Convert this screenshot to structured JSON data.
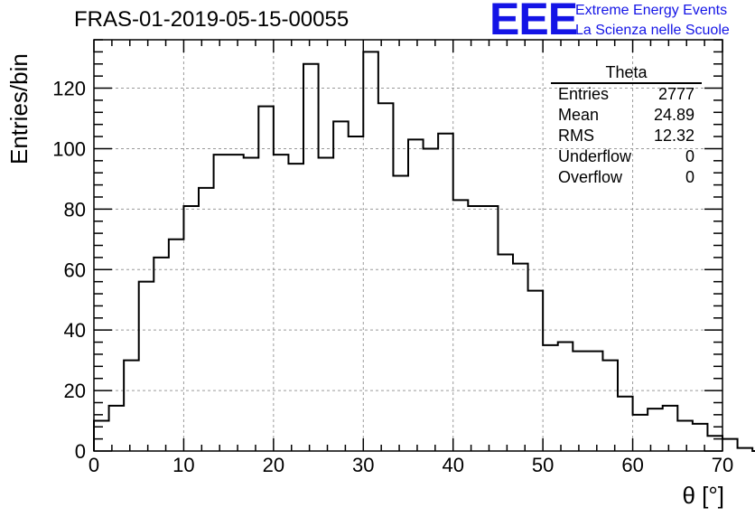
{
  "header": {
    "title": "FRAS-01-2019-05-15-00055",
    "logo_text": "EEE",
    "logo_line1": "Extreme Energy Events",
    "logo_line2": "La Scienza nelle Scuole",
    "logo_color": "#1414e6"
  },
  "stats_box": {
    "title": "Theta",
    "rows": [
      {
        "label": "Entries",
        "value": "2777"
      },
      {
        "label": "Mean",
        "value": "24.89"
      },
      {
        "label": "RMS",
        "value": "12.32"
      },
      {
        "label": "Underflow",
        "value": "0"
      },
      {
        "label": "Overflow",
        "value": "0"
      }
    ]
  },
  "chart_data": {
    "type": "bar",
    "style": "step-histogram",
    "xlabel": "θ [°]",
    "ylabel": "Entries/bin",
    "xlim": [
      0,
      70
    ],
    "ylim": [
      0,
      136
    ],
    "xticks": [
      0,
      10,
      20,
      30,
      40,
      50,
      60,
      70
    ],
    "yticks": [
      0,
      20,
      40,
      60,
      80,
      100,
      120
    ],
    "grid": true,
    "bin_edges_start": 0,
    "bin_width": 1.6667,
    "values": [
      10,
      15,
      30,
      56,
      64,
      70,
      81,
      87,
      98,
      98,
      97,
      114,
      98,
      95,
      128,
      97,
      109,
      104,
      132,
      115,
      91,
      103,
      100,
      105,
      83,
      81,
      81,
      65,
      62,
      53,
      35,
      36,
      33,
      33,
      30,
      18,
      12,
      14,
      15,
      10,
      9,
      5,
      4,
      1,
      0
    ]
  }
}
